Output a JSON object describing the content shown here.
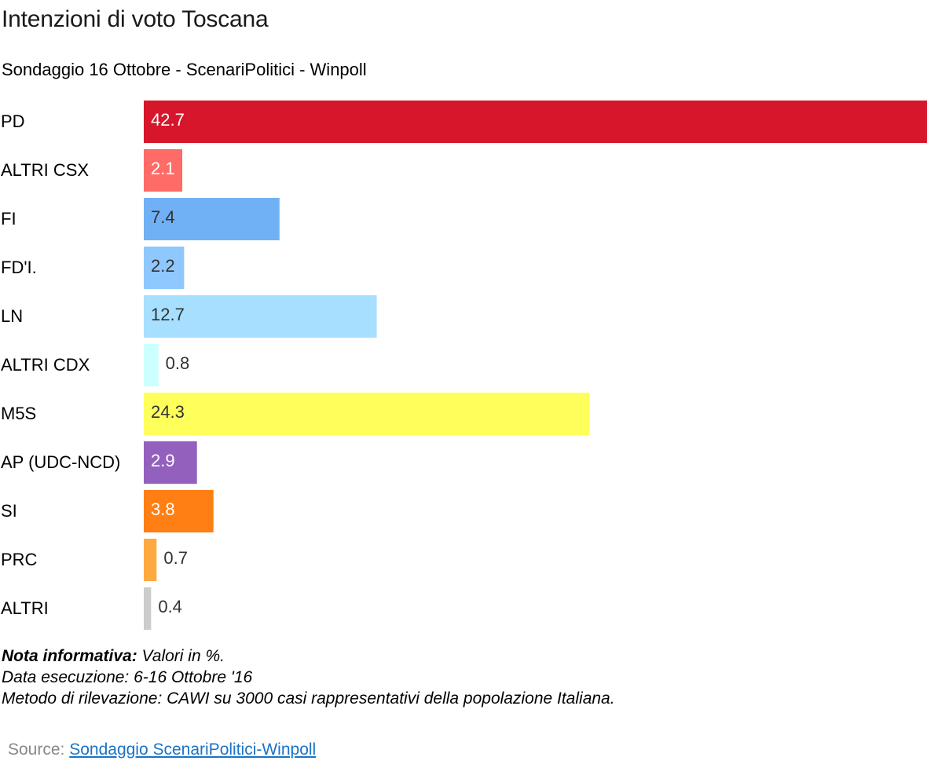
{
  "header": {
    "title": "Intenzioni di voto Toscana",
    "subtitle": "Sondaggio 16 Ottobre - ScenariPolitici - Winpoll"
  },
  "chart_data": {
    "type": "bar",
    "orientation": "horizontal",
    "categories": [
      "PD",
      "ALTRI CSX",
      "FI",
      "FD'I.",
      "LN",
      "ALTRI CDX",
      "M5S",
      "AP (UDC-NCD)",
      "SI",
      "PRC",
      "ALTRI"
    ],
    "values": [
      42.7,
      2.1,
      7.4,
      2.2,
      12.7,
      0.8,
      24.3,
      2.9,
      3.8,
      0.7,
      0.4
    ],
    "value_labels": [
      "42.7",
      "2.1",
      "7.4",
      "2.2",
      "12.7",
      "0.8",
      "24.3",
      "2.9",
      "3.8",
      "0.7",
      "0.4"
    ],
    "colors": [
      "#d6162b",
      "#ff6b66",
      "#70b0f5",
      "#8ec8ff",
      "#a6dfff",
      "#ccffff",
      "#ffff5c",
      "#9360be",
      "#ff7f14",
      "#ffaa40",
      "#cccccc"
    ],
    "label_colors": [
      "#ffffff",
      "#ffffff",
      "#333333",
      "#333333",
      "#333333",
      "#333333",
      "#333333",
      "#ffffff",
      "#ffffff",
      "#333333",
      "#333333"
    ],
    "xlim": [
      0,
      42.7
    ],
    "grid": false,
    "legend": "none"
  },
  "notes": {
    "label": "Nota informativa:",
    "line1": "Valori in %.",
    "line2": "Data esecuzione: 6-16  Ottobre '16",
    "line3": "Metodo di rilevazione: CAWI su 3000 casi rappresentativi della popolazione Italiana."
  },
  "source": {
    "label": "Source: ",
    "link_text": "Sondaggio ScenariPolitici-Winpoll"
  }
}
